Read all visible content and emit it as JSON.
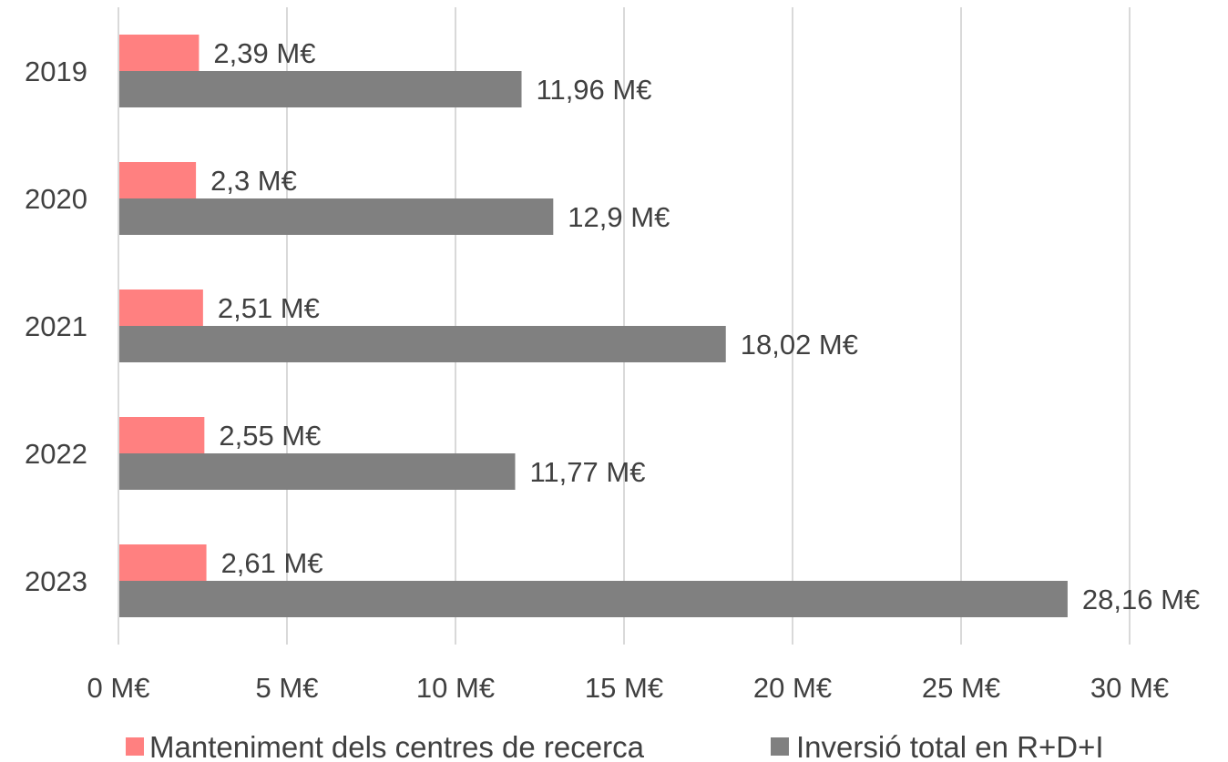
{
  "chart_data": {
    "type": "bar",
    "orientation": "horizontal",
    "categories": [
      "2019",
      "2020",
      "2021",
      "2022",
      "2023"
    ],
    "series": [
      {
        "name": "Manteniment dels centres de recerca",
        "color": "#ff8080",
        "values": [
          2.39,
          2.3,
          2.51,
          2.55,
          2.61
        ],
        "labels": [
          "2,39 M€",
          "2,3 M€",
          "2,51 M€",
          "2,55 M€",
          "2,61 M€"
        ]
      },
      {
        "name": "Inversió total en R+D+I",
        "color": "#808080",
        "values": [
          11.96,
          12.9,
          18.02,
          11.77,
          28.16
        ],
        "labels": [
          "11,96 M€",
          "12,9 M€",
          "18,02 M€",
          "11,77 M€",
          "28,16 M€"
        ]
      }
    ],
    "x_ticks": [
      0,
      5,
      10,
      15,
      20,
      25,
      30
    ],
    "x_tick_labels": [
      "0 M€",
      "5 M€",
      "10 M€",
      "15 M€",
      "20 M€",
      "25 M€",
      "30 M€"
    ],
    "xlim": [
      0,
      30
    ],
    "grid": "vertical",
    "legend_position": "bottom",
    "title": "",
    "xlabel": "",
    "ylabel": ""
  }
}
